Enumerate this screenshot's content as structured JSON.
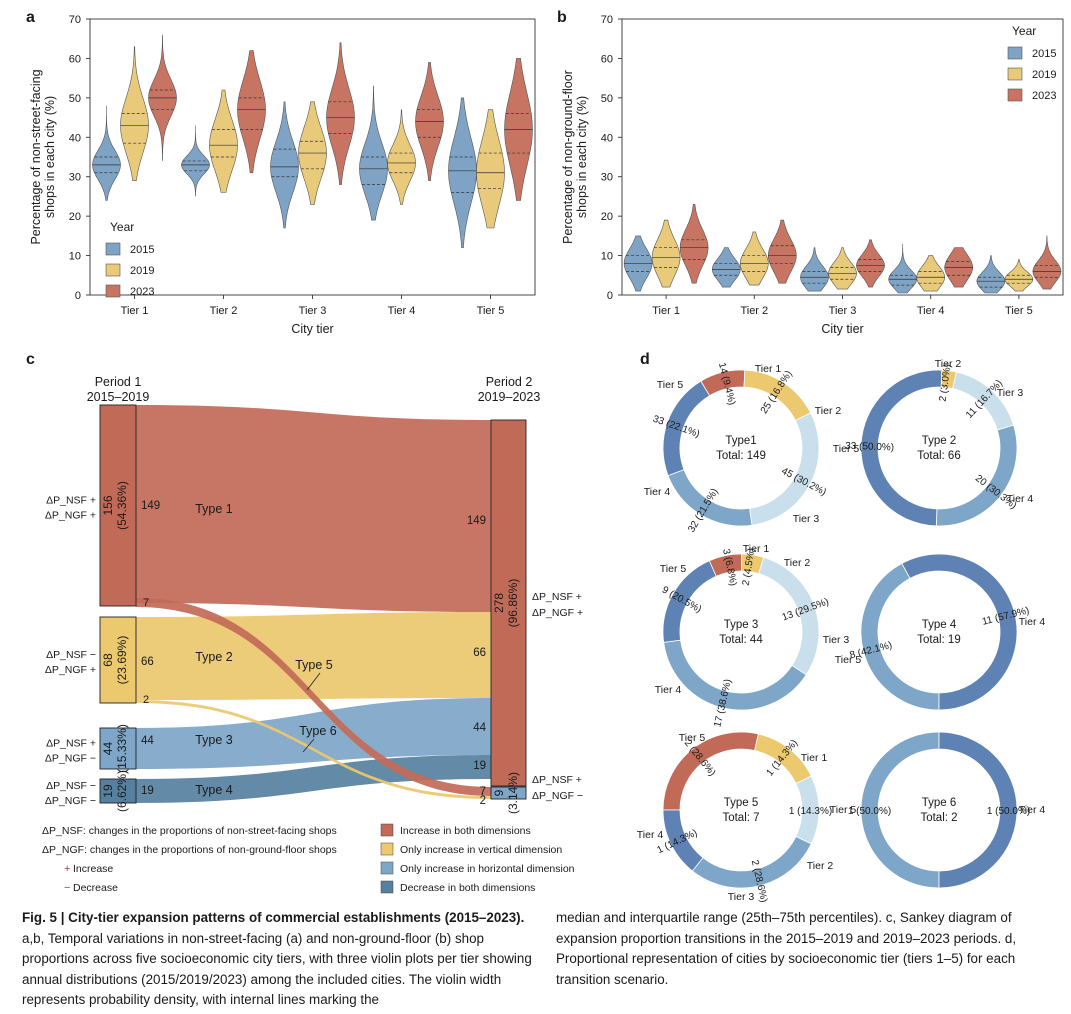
{
  "chart_data": [
    {
      "panel": "a",
      "type": "violin",
      "ylabel_lines": [
        "Percentage of non-street-facing",
        "shops in each city (%)"
      ],
      "xlabel": "City tier",
      "categories": [
        "Tier 1",
        "Tier 2",
        "Tier 3",
        "Tier 4",
        "Tier 5"
      ],
      "ylim": [
        0,
        70
      ],
      "yticks": [
        "0",
        "10",
        "20",
        "30",
        "40",
        "50",
        "60",
        "70"
      ],
      "legend_title": "Year",
      "legend_position": "bottom-left",
      "series": [
        {
          "name": "2015",
          "color": "#7fa3c4",
          "violins": [
            {
              "min": 24,
              "q1": 31,
              "median": 33,
              "q3": 35,
              "max": 48
            },
            {
              "min": 25,
              "q1": 31.5,
              "median": 33,
              "q3": 34,
              "max": 43
            },
            {
              "min": 17,
              "q1": 30,
              "median": 32.5,
              "q3": 37,
              "max": 49
            },
            {
              "min": 19,
              "q1": 28,
              "median": 32,
              "q3": 35,
              "max": 53
            },
            {
              "min": 12,
              "q1": 26,
              "median": 31.5,
              "q3": 35,
              "max": 50
            }
          ]
        },
        {
          "name": "2019",
          "color": "#e9c97a",
          "violins": [
            {
              "min": 29,
              "q1": 38.5,
              "median": 43,
              "q3": 46,
              "max": 63
            },
            {
              "min": 26,
              "q1": 35,
              "median": 38,
              "q3": 42,
              "max": 52
            },
            {
              "min": 23,
              "q1": 32,
              "median": 36,
              "q3": 39,
              "max": 49
            },
            {
              "min": 23,
              "q1": 31,
              "median": 33.5,
              "q3": 36,
              "max": 47
            },
            {
              "min": 17,
              "q1": 27,
              "median": 31,
              "q3": 36,
              "max": 47
            }
          ]
        },
        {
          "name": "2023",
          "color": "#c87462",
          "violins": [
            {
              "min": 34,
              "q1": 47,
              "median": 50,
              "q3": 52,
              "max": 66
            },
            {
              "min": 31,
              "q1": 42,
              "median": 47,
              "q3": 50,
              "max": 62
            },
            {
              "min": 28,
              "q1": 41,
              "median": 45,
              "q3": 49,
              "max": 64
            },
            {
              "min": 29,
              "q1": 40,
              "median": 44,
              "q3": 47,
              "max": 59
            },
            {
              "min": 24,
              "q1": 36,
              "median": 42,
              "q3": 46,
              "max": 60
            }
          ]
        }
      ]
    },
    {
      "panel": "b",
      "type": "violin",
      "ylabel_lines": [
        "Percentage of non-ground-floor",
        "shops in each city (%)"
      ],
      "xlabel": "City tier",
      "categories": [
        "Tier 1",
        "Tier 2",
        "Tier 3",
        "Tier 4",
        "Tier 5"
      ],
      "ylim": [
        0,
        70
      ],
      "yticks": [
        "0",
        "10",
        "20",
        "30",
        "40",
        "50",
        "60",
        "70"
      ],
      "legend_title": "Year",
      "legend_position": "top-right",
      "series": [
        {
          "name": "2015",
          "color": "#7fa3c4",
          "violins": [
            {
              "min": 1,
              "q1": 6,
              "median": 8,
              "q3": 10,
              "max": 15
            },
            {
              "min": 2,
              "q1": 5,
              "median": 6.5,
              "q3": 8,
              "max": 12
            },
            {
              "min": 1,
              "q1": 3,
              "median": 4.5,
              "q3": 6,
              "max": 12
            },
            {
              "min": 0.5,
              "q1": 2.5,
              "median": 4,
              "q3": 5,
              "max": 13
            },
            {
              "min": 0.5,
              "q1": 2,
              "median": 3.5,
              "q3": 4.5,
              "max": 10
            }
          ]
        },
        {
          "name": "2019",
          "color": "#e9c97a",
          "violins": [
            {
              "min": 2,
              "q1": 7,
              "median": 9.5,
              "q3": 12,
              "max": 19
            },
            {
              "min": 2.5,
              "q1": 6,
              "median": 8,
              "q3": 10,
              "max": 16
            },
            {
              "min": 1.5,
              "q1": 4,
              "median": 5.5,
              "q3": 7,
              "max": 12
            },
            {
              "min": 1,
              "q1": 3,
              "median": 4.5,
              "q3": 6,
              "max": 10
            },
            {
              "min": 1,
              "q1": 3,
              "median": 4,
              "q3": 5,
              "max": 9
            }
          ]
        },
        {
          "name": "2023",
          "color": "#c87462",
          "violins": [
            {
              "min": 3,
              "q1": 9,
              "median": 12,
              "q3": 14,
              "max": 23
            },
            {
              "min": 3,
              "q1": 8,
              "median": 10,
              "q3": 12.5,
              "max": 19
            },
            {
              "min": 2,
              "q1": 6,
              "median": 7.5,
              "q3": 9,
              "max": 14
            },
            {
              "min": 2,
              "q1": 5,
              "median": 7,
              "q3": 8.5,
              "max": 12
            },
            {
              "min": 1.5,
              "q1": 4.5,
              "median": 6,
              "q3": 7.5,
              "max": 15
            }
          ]
        }
      ]
    },
    {
      "panel": "c",
      "type": "sankey",
      "period1_title": [
        "Period 1",
        "2015–2019"
      ],
      "period2_title": [
        "Period 2",
        "2019–2023"
      ],
      "left_nodes": [
        {
          "value": "156",
          "pct": "(54.36%)",
          "out_label": "149",
          "signs": [
            "ΔP_NSF +",
            "ΔP_NGF +"
          ],
          "color": "#c26a58",
          "stroke": "#222222"
        },
        {
          "value": "68",
          "pct": "(23.69%)",
          "out_label": "66",
          "signs": [
            "ΔP_NSF −",
            "ΔP_NGF +"
          ],
          "color": "#ecc86e",
          "stroke": "#222222"
        },
        {
          "value": "44",
          "pct": "(15.33%)",
          "out_label": "44",
          "signs": [
            "ΔP_NSF +",
            "ΔP_NGF −"
          ],
          "color": "#7ea6c8",
          "stroke": "#222222"
        },
        {
          "value": "19",
          "pct": "(6.62%)",
          "out_label": "19",
          "signs": [
            "ΔP_NSF −",
            "ΔP_NGF −"
          ],
          "color": "#56809f",
          "stroke": "#222222"
        }
      ],
      "right_nodes": [
        {
          "value": "278",
          "pct": "(96.86%)",
          "signs": [
            "ΔP_NSF +",
            "ΔP_NGF +"
          ],
          "color": "#c26a58"
        },
        {
          "value": "9",
          "pct": "(3.14%)",
          "signs": [
            "ΔP_NSF +",
            "ΔP_NGF −"
          ],
          "color": "#7ea6c8"
        }
      ],
      "flows": [
        {
          "name": "Type 1",
          "from": 0,
          "to": 0,
          "value": 149,
          "color": "#c26a58"
        },
        {
          "name": "Type 2",
          "from": 1,
          "to": 0,
          "value": 66,
          "color": "#ecc86e"
        },
        {
          "name": "Type 3",
          "from": 2,
          "to": 0,
          "value": 44,
          "color": "#7ea6c8"
        },
        {
          "name": "Type 4",
          "from": 3,
          "to": 0,
          "value": 19,
          "color": "#56809f"
        },
        {
          "name": "Type 5",
          "from": 0,
          "to": 1,
          "value": 7,
          "color": "#c26a58"
        },
        {
          "name": "Type 6",
          "from": 1,
          "to": 1,
          "value": 2,
          "color": "#ecc86e"
        }
      ],
      "in_labels": [
        "149",
        "66",
        "44",
        "19",
        "7",
        "2"
      ],
      "small_out_labels": [
        "7",
        "2"
      ],
      "legend_left": [
        "ΔP_NSF: changes in the proportions of non-street-facing shops",
        "ΔP_NGF: changes in the proportions of non-ground-floor shops"
      ],
      "legend_signs": [
        {
          "sign": "+",
          "text": "Increase"
        },
        {
          "sign": "−",
          "text": "Decrease"
        }
      ],
      "legend_right": [
        {
          "text": "Increase in both dimensions",
          "color": "#c26a58"
        },
        {
          "text": "Only increase in vertical dimension",
          "color": "#ecc86e"
        },
        {
          "text": "Only increase in horizontal dimension",
          "color": "#7ea6c8"
        },
        {
          "text": "Decrease in both dimensions",
          "color": "#56809f"
        }
      ]
    },
    {
      "panel": "d",
      "type": "pie",
      "tier_colors": {
        "Tier 1": "#c26a58",
        "Tier 2": "#ecc86e",
        "Tier 3": "#c9e0ec",
        "Tier 4": "#7ea6c8",
        "Tier 5": "#5f82b4"
      },
      "donuts": [
        {
          "title": "Type1",
          "total": "Total: 149",
          "slices": [
            {
              "tier": "Tier 1",
              "value": 14,
              "label": "14 (9.4%)"
            },
            {
              "tier": "Tier 2",
              "value": 25,
              "label": "25 (16.8%)"
            },
            {
              "tier": "Tier 3",
              "value": 45,
              "label": "45 (30.2%)"
            },
            {
              "tier": "Tier 4",
              "value": 32,
              "label": "32 (21.5%)"
            },
            {
              "tier": "Tier 5",
              "value": 33,
              "label": "33 (22.1%)"
            }
          ]
        },
        {
          "title": "Type 2",
          "total": "Total: 66",
          "slices": [
            {
              "tier": "Tier 2",
              "value": 2,
              "label": "2 (3.0%)"
            },
            {
              "tier": "Tier 3",
              "value": 11,
              "label": "11 (16.7%)"
            },
            {
              "tier": "Tier 4",
              "value": 20,
              "label": "20 (30.3%)"
            },
            {
              "tier": "Tier 5",
              "value": 33,
              "label": "33 (50.0%)"
            }
          ]
        },
        {
          "title": "Type 3",
          "total": "Total: 44",
          "slices": [
            {
              "tier": "Tier 1",
              "value": 3,
              "label": "3 (6.8%)"
            },
            {
              "tier": "Tier 2",
              "value": 2,
              "label": "2 (4.5%)"
            },
            {
              "tier": "Tier 3",
              "value": 13,
              "label": "13 (29.5%)"
            },
            {
              "tier": "Tier 4",
              "value": 17,
              "label": "17 (38.6%)"
            },
            {
              "tier": "Tier 5",
              "value": 9,
              "label": "9 (20.5%)"
            }
          ]
        },
        {
          "title": "Type 4",
          "total": "Total: 19",
          "slices": [
            {
              "tier": "Tier 4",
              "value": 8,
              "label": "8 (42.1%)"
            },
            {
              "tier": "Tier 5",
              "value": 11,
              "label": "11 (57.9%)"
            }
          ]
        },
        {
          "title": "Type 5",
          "total": "Total: 7",
          "slices": [
            {
              "tier": "Tier 1",
              "value": 2,
              "label": "2 (28.6%)"
            },
            {
              "tier": "Tier 2",
              "value": 1,
              "label": "1 (14.3%)"
            },
            {
              "tier": "Tier 3",
              "value": 1,
              "label": "1 (14.3%)"
            },
            {
              "tier": "Tier 4",
              "value": 2,
              "label": "2 (28.6%)"
            },
            {
              "tier": "Tier 5",
              "value": 1,
              "label": "1 (14.3%)"
            }
          ]
        },
        {
          "title": "Type 6",
          "total": "Total: 2",
          "slices": [
            {
              "tier": "Tier 4",
              "value": 1,
              "label": "1 (50.0%)"
            },
            {
              "tier": "Tier 5",
              "value": 1,
              "label": "1 (50.0%)"
            }
          ]
        }
      ]
    }
  ],
  "panel_labels": [
    "a",
    "b",
    "c",
    "d"
  ],
  "caption": {
    "fig": "Fig. 5 | City-tier expansion patterns of commercial establishments (2015–2023).",
    "col1_rest": " a,b, Temporal variations in non-street-facing (a) and non-ground-floor (b) shop proportions across five socioeconomic city tiers, with three violin plots per tier showing annual distributions (2015/2019/2023) among the included cities. The violin width represents probability density, with internal lines marking the",
    "col2": "median and interquartile range (25th–75th percentiles). c, Sankey diagram of expansion proportion transitions in the 2015–2019 and 2019–2023 periods. d, Proportional representation of cities by socioeconomic tier (tiers 1–5) for each transition scenario."
  }
}
